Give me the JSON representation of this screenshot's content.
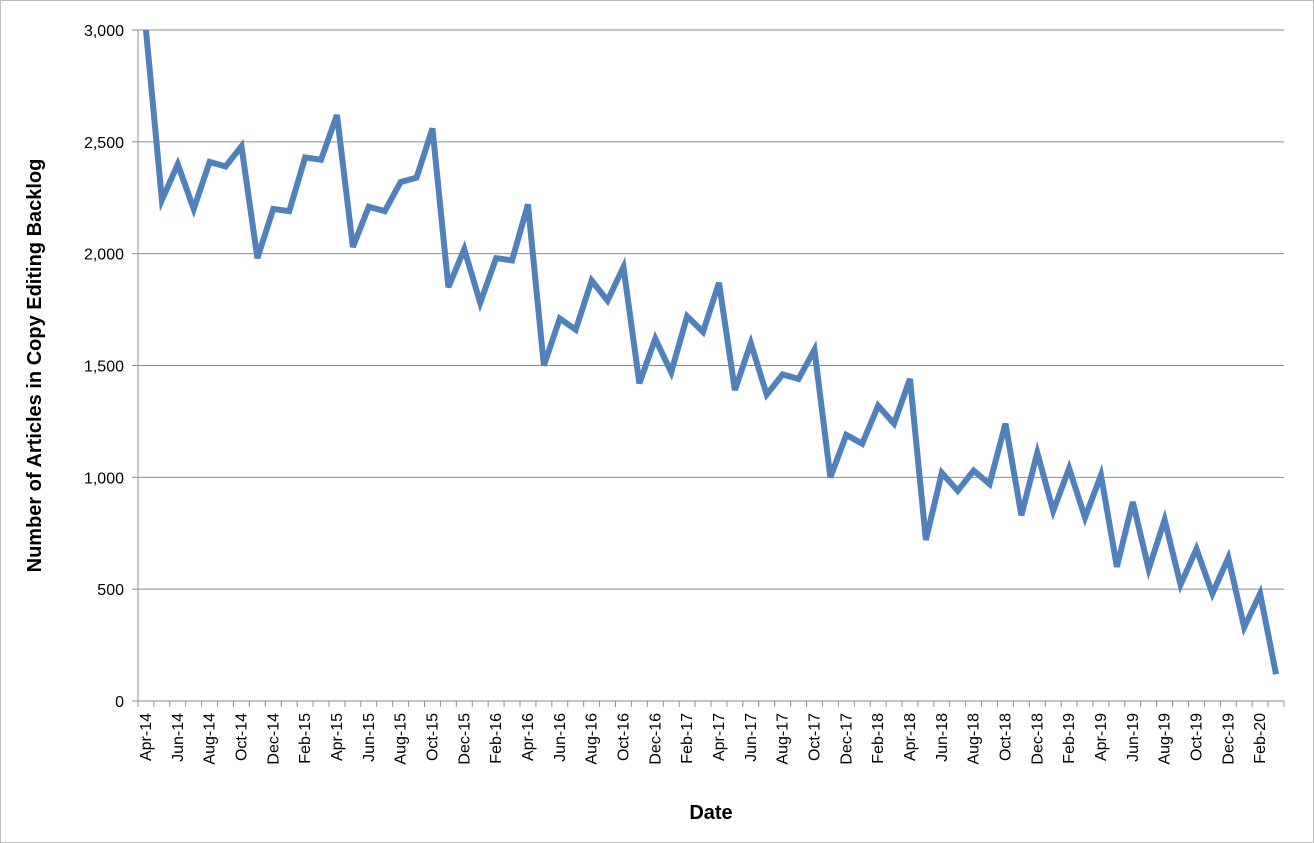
{
  "chart_data": {
    "type": "line",
    "title": "",
    "xlabel": "Date",
    "ylabel": "Number of Articles in Copy Editing Backlog",
    "ylim": [
      0,
      3000
    ],
    "yticks": [
      0,
      500,
      1000,
      1500,
      2000,
      2500,
      3000
    ],
    "ytick_labels": [
      "0",
      "500",
      "1,000",
      "1,500",
      "2,000",
      "2,500",
      "3,000"
    ],
    "grid": "horizontal",
    "legend": "none",
    "line_color": "#4f81bd",
    "x_tick_labels": [
      "Apr-14",
      "Jun-14",
      "Aug-14",
      "Oct-14",
      "Dec-14",
      "Feb-15",
      "Apr-15",
      "Jun-15",
      "Aug-15",
      "Oct-15",
      "Dec-15",
      "Feb-16",
      "Apr-16",
      "Jun-16",
      "Aug-16",
      "Oct-16",
      "Dec-16",
      "Feb-17",
      "Apr-17",
      "Jun-17",
      "Aug-17",
      "Oct-17",
      "Dec-17",
      "Feb-18",
      "Apr-18",
      "Jun-18",
      "Aug-18",
      "Oct-18",
      "Dec-18",
      "Feb-19",
      "Apr-19",
      "Jun-19",
      "Aug-19",
      "Oct-19",
      "Dec-19",
      "Feb-20"
    ],
    "x": [
      "Apr-14",
      "May-14",
      "Jun-14",
      "Jul-14",
      "Aug-14",
      "Sep-14",
      "Oct-14",
      "Nov-14",
      "Dec-14",
      "Jan-15",
      "Feb-15",
      "Mar-15",
      "Apr-15",
      "May-15",
      "Jun-15",
      "Jul-15",
      "Aug-15",
      "Sep-15",
      "Oct-15",
      "Nov-15",
      "Dec-15",
      "Jan-16",
      "Feb-16",
      "Mar-16",
      "Apr-16",
      "May-16",
      "Jun-16",
      "Jul-16",
      "Aug-16",
      "Sep-16",
      "Oct-16",
      "Nov-16",
      "Dec-16",
      "Jan-17",
      "Feb-17",
      "Mar-17",
      "Apr-17",
      "May-17",
      "Jun-17",
      "Jul-17",
      "Aug-17",
      "Sep-17",
      "Oct-17",
      "Nov-17",
      "Dec-17",
      "Jan-18",
      "Feb-18",
      "Mar-18",
      "Apr-18",
      "May-18",
      "Jun-18",
      "Jul-18",
      "Aug-18",
      "Sep-18",
      "Oct-18",
      "Nov-18",
      "Dec-18",
      "Jan-19",
      "Feb-19",
      "Mar-19",
      "Apr-19",
      "May-19",
      "Jun-19",
      "Jul-19",
      "Aug-19",
      "Sep-19",
      "Oct-19",
      "Nov-19",
      "Dec-19",
      "Jan-20",
      "Feb-20",
      "Mar-20"
    ],
    "series": [
      {
        "values": [
          3000,
          2240,
          2400,
          2200,
          2410,
          2390,
          2480,
          1980,
          2200,
          2190,
          2430,
          2420,
          2620,
          2030,
          2210,
          2190,
          2320,
          2340,
          2560,
          1850,
          2020,
          1780,
          1980,
          1970,
          2220,
          1500,
          1710,
          1660,
          1880,
          1790,
          1940,
          1420,
          1620,
          1470,
          1720,
          1650,
          1870,
          1390,
          1600,
          1370,
          1460,
          1440,
          1570,
          1000,
          1190,
          1150,
          1320,
          1240,
          1440,
          720,
          1020,
          940,
          1030,
          970,
          1240,
          830,
          1110,
          850,
          1040,
          820,
          1010,
          600,
          890,
          590,
          810,
          520,
          680,
          480,
          640,
          330,
          480,
          120
        ]
      }
    ]
  }
}
